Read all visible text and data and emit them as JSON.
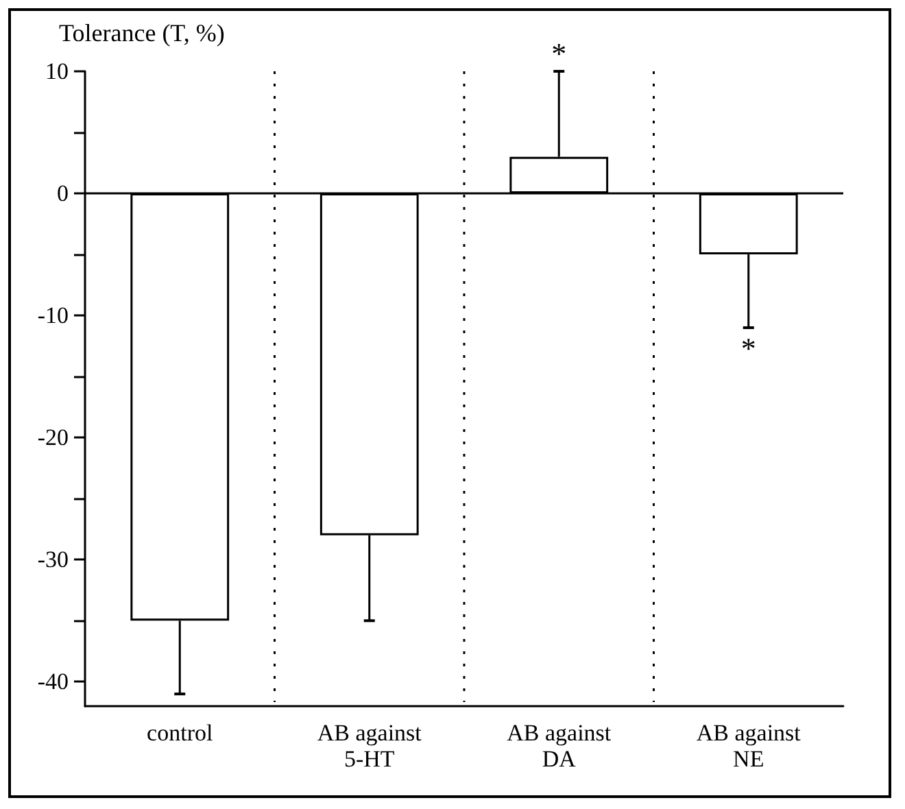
{
  "chart_data": {
    "type": "bar",
    "ylabel": "Tolerance (T, %)",
    "categories": [
      "control",
      "AB against\n5-HT",
      "AB against\nDA",
      "AB against\nNE"
    ],
    "values": [
      -35,
      -28,
      3,
      -5
    ],
    "color": "#ffffff",
    "errors": [
      [
        -41,
        -35
      ],
      [
        -35,
        -28
      ],
      [
        3,
        10
      ],
      [
        -11,
        -5
      ]
    ],
    "ylim": [
      -42,
      10
    ],
    "yticks": [
      -40,
      {
        "value": -35,
        "label": null
      },
      -30,
      {
        "value": -25,
        "label": null
      },
      -20,
      {
        "value": -15,
        "label": null
      },
      -10,
      {
        "value": -5,
        "label": null
      },
      0,
      {
        "value": 5,
        "label": null
      },
      10
    ],
    "ref_lines": [
      {
        "axis": "y",
        "value": 0,
        "color": "#000000",
        "line_style": "solid"
      }
    ],
    "annotations": [
      {
        "text": "*",
        "x": "AB against\nDA",
        "y": 10
      },
      {
        "text": "*",
        "x": "AB against\nNE",
        "y": -11
      }
    ],
    "grid": "x"
  }
}
